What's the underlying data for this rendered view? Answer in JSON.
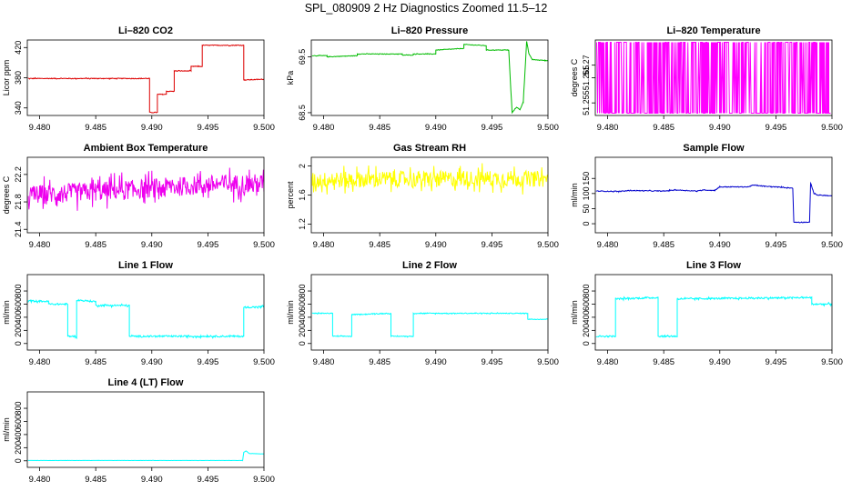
{
  "page": {
    "title": "SPL_080909  2 Hz Diagnostics Zoomed 11.5–12"
  },
  "chart_data": [
    {
      "type": "line",
      "title": "Li–820 CO2",
      "ylabel": "Licor ppm",
      "color": "#dd0000",
      "xlim": [
        9.4789,
        9.5
      ],
      "ylim": [
        330,
        430
      ],
      "xticks": [
        "9.480",
        "9.485",
        "9.490",
        "9.495",
        "9.500"
      ],
      "yticks": [
        340,
        380,
        420
      ],
      "noise": 1,
      "series": [
        {
          "x": [
            9.479,
            9.4898,
            9.4898,
            9.4905,
            9.4905,
            9.4913,
            9.4913,
            9.492,
            9.492,
            9.4935,
            9.4935,
            9.4945,
            9.4945,
            9.4982,
            9.4982,
            9.5
          ],
          "y": [
            379,
            379,
            334,
            334,
            358,
            358,
            362,
            362,
            389,
            389,
            395,
            395,
            423,
            423,
            377,
            378
          ]
        }
      ]
    },
    {
      "type": "line",
      "title": "Li–820 Pressure",
      "ylabel": "kPa",
      "color": "#00bb00",
      "xlim": [
        9.4789,
        9.5
      ],
      "ylim": [
        68.45,
        69.8
      ],
      "xticks": [
        "9.480",
        "9.485",
        "9.490",
        "9.495",
        "9.500"
      ],
      "yticks": [
        68.5,
        69.5
      ],
      "noise": 0.01,
      "series": [
        {
          "x": [
            9.479,
            9.4803,
            9.4803,
            9.483,
            9.483,
            9.487,
            9.487,
            9.488,
            9.488,
            9.49,
            9.49,
            9.4925,
            9.4925,
            9.4945,
            9.4945,
            9.4965,
            9.4968,
            9.4972,
            9.4975,
            9.4978,
            9.4981,
            9.4983,
            9.4986,
            9.5
          ],
          "y": [
            69.52,
            69.52,
            69.5,
            69.52,
            69.55,
            69.55,
            69.53,
            69.53,
            69.55,
            69.55,
            69.62,
            69.65,
            69.72,
            69.7,
            69.62,
            69.62,
            68.5,
            68.6,
            68.55,
            68.7,
            69.78,
            69.55,
            69.45,
            69.43
          ]
        }
      ]
    },
    {
      "type": "line",
      "title": "Li–820 Temperature",
      "ylabel": "degrees C",
      "color": "#ff00ff",
      "xlim": [
        9.4789,
        9.5
      ],
      "ylim": [
        51.25,
        51.28
      ],
      "xticks": [
        "9.480",
        "9.485",
        "9.490",
        "9.495",
        "9.500"
      ],
      "yticks": [
        51.255,
        51.265,
        51.27
      ],
      "style": "binary",
      "series": [
        {
          "x": [
            9.479,
            9.48,
            9.481,
            9.482,
            9.483,
            9.484,
            9.485,
            9.486,
            9.487,
            9.488,
            9.489,
            9.49,
            9.491,
            9.492,
            9.493,
            9.494,
            9.495,
            9.496,
            9.497,
            9.498,
            9.499,
            9.5
          ],
          "y": [
            51.251,
            51.279,
            51.251,
            51.279,
            51.251,
            51.279,
            51.251,
            51.279,
            51.251,
            51.279,
            51.251,
            51.279,
            51.251,
            51.279,
            51.251,
            51.279,
            51.251,
            51.279,
            51.251,
            51.279,
            51.251,
            51.279
          ]
        }
      ]
    },
    {
      "type": "line",
      "title": "Ambient Box Temperature",
      "ylabel": "degrees C",
      "color": "#ee00ee",
      "xlim": [
        9.4789,
        9.5
      ],
      "ylim": [
        21.35,
        22.45
      ],
      "xticks": [
        "9.480",
        "9.485",
        "9.490",
        "9.495",
        "9.500"
      ],
      "yticks": [
        21.4,
        21.8,
        22.2
      ],
      "noise": 0.28,
      "series": [
        {
          "x": [
            9.479,
            9.485,
            9.49,
            9.495,
            9.5
          ],
          "y": [
            21.9,
            21.95,
            22.0,
            22.05,
            22.07
          ]
        }
      ]
    },
    {
      "type": "line",
      "title": "Gas Stream RH",
      "ylabel": "percent",
      "color": "#ffff00",
      "xlim": [
        9.4789,
        9.5
      ],
      "ylim": [
        1.08,
        2.12
      ],
      "xticks": [
        "9.480",
        "9.485",
        "9.490",
        "9.495",
        "9.500"
      ],
      "yticks": [
        1.2,
        1.6,
        2.0
      ],
      "noise": 0.22,
      "series": [
        {
          "x": [
            9.479,
            9.485,
            9.49,
            9.495,
            9.5
          ],
          "y": [
            1.8,
            1.82,
            1.82,
            1.83,
            1.82
          ]
        }
      ]
    },
    {
      "type": "line",
      "title": "Sample Flow",
      "ylabel": "ml/min",
      "color": "#0000cc",
      "xlim": [
        9.4789,
        9.5
      ],
      "ylim": [
        -30,
        220
      ],
      "xticks": [
        "9.480",
        "9.485",
        "9.490",
        "9.495",
        "9.500"
      ],
      "yticks": [
        0,
        50,
        100,
        150
      ],
      "noise": 2.5,
      "series": [
        {
          "x": [
            9.479,
            9.481,
            9.482,
            9.485,
            9.486,
            9.488,
            9.4885,
            9.4895,
            9.49,
            9.4925,
            9.493,
            9.494,
            9.495,
            9.4965,
            9.4966,
            9.498,
            9.4981,
            9.4984,
            9.4987,
            9.5
          ],
          "y": [
            108,
            107,
            110,
            108,
            112,
            108,
            112,
            110,
            122,
            122,
            128,
            124,
            122,
            118,
            5,
            5,
            135,
            100,
            95,
            92
          ]
        }
      ]
    },
    {
      "type": "line",
      "title": "Line 1 Flow",
      "ylabel": "ml/min",
      "color": "#00ffff",
      "xlim": [
        9.4789,
        9.5
      ],
      "ylim": [
        -100,
        1050
      ],
      "xticks": [
        "9.480",
        "9.485",
        "9.490",
        "9.495",
        "9.500"
      ],
      "yticks": [
        0,
        200,
        400,
        600,
        800
      ],
      "noise": 25,
      "series": [
        {
          "x": [
            9.479,
            9.4808,
            9.4808,
            9.4825,
            9.4825,
            9.4833,
            9.4833,
            9.485,
            9.485,
            9.488,
            9.488,
            9.4982,
            9.4982,
            9.5
          ],
          "y": [
            650,
            640,
            600,
            600,
            110,
            110,
            660,
            640,
            580,
            580,
            110,
            110,
            550,
            560
          ]
        }
      ]
    },
    {
      "type": "line",
      "title": "Line 2 Flow",
      "ylabel": "ml/min",
      "color": "#00ffff",
      "xlim": [
        9.4789,
        9.5
      ],
      "ylim": [
        -100,
        1050
      ],
      "xticks": [
        "9.480",
        "9.485",
        "9.490",
        "9.495",
        "9.500"
      ],
      "yticks": [
        0,
        200,
        400,
        600,
        800
      ],
      "noise": 12,
      "series": [
        {
          "x": [
            9.479,
            9.4808,
            9.4808,
            9.4825,
            9.4825,
            9.486,
            9.486,
            9.488,
            9.488,
            9.4982,
            9.4982,
            9.5
          ],
          "y": [
            460,
            460,
            110,
            110,
            440,
            460,
            110,
            110,
            460,
            460,
            370,
            370
          ]
        }
      ]
    },
    {
      "type": "line",
      "title": "Line 3 Flow",
      "ylabel": "ml/min",
      "color": "#00ffff",
      "xlim": [
        9.4789,
        9.5
      ],
      "ylim": [
        -100,
        1050
      ],
      "xticks": [
        "9.480",
        "9.485",
        "9.490",
        "9.495",
        "9.500"
      ],
      "yticks": [
        0,
        200,
        400,
        600,
        800
      ],
      "noise": 25,
      "series": [
        {
          "x": [
            9.479,
            9.4807,
            9.4807,
            9.4845,
            9.4845,
            9.4862,
            9.4862,
            9.4982,
            9.4982,
            9.5
          ],
          "y": [
            110,
            110,
            680,
            700,
            110,
            110,
            680,
            700,
            600,
            600
          ]
        }
      ]
    },
    {
      "type": "line",
      "title": "Line 4 (LT) Flow",
      "ylabel": "ml/min",
      "color": "#00ffff",
      "xlim": [
        9.4789,
        9.5
      ],
      "ylim": [
        -100,
        1050
      ],
      "xticks": [
        "9.480",
        "9.485",
        "9.490",
        "9.495",
        "9.500"
      ],
      "yticks": [
        0,
        200,
        400,
        600,
        800
      ],
      "noise": 2,
      "series": [
        {
          "x": [
            9.479,
            9.4981,
            9.4982,
            9.4984,
            9.4987,
            9.5
          ],
          "y": [
            5,
            5,
            130,
            150,
            110,
            105
          ]
        }
      ]
    }
  ]
}
